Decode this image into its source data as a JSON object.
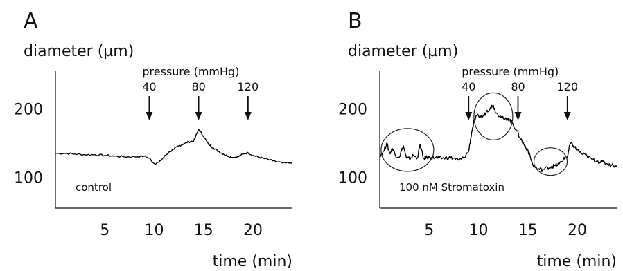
{
  "chart_data": [
    {
      "panel": "A",
      "type": "line",
      "ylabel": "diameter (µm)",
      "xlabel": "time (min)",
      "xlim": [
        0,
        24
      ],
      "ylim": [
        55,
        255
      ],
      "yticks": [
        100,
        200
      ],
      "xticks": [
        5,
        10,
        15,
        20
      ],
      "pressure_title": "pressure (mmHg)",
      "pressure_steps": [
        {
          "label": "40",
          "time": 9.5
        },
        {
          "label": "80",
          "time": 14.5
        },
        {
          "label": "120",
          "time": 19.5
        }
      ],
      "annotation": "control",
      "series": [
        {
          "x": [
            0,
            1,
            2,
            3,
            4,
            5,
            6,
            7,
            8,
            9,
            9.5,
            10,
            10.5,
            11,
            11.5,
            12,
            12.5,
            13,
            13.5,
            14,
            14.5,
            15,
            15.5,
            16,
            16.5,
            17,
            17.5,
            18,
            18.5,
            19,
            19.5,
            20,
            20.5,
            21,
            22,
            23,
            24
          ],
          "y": [
            135,
            135,
            134,
            133,
            133,
            132,
            131,
            130,
            130,
            131,
            128,
            120,
            122,
            130,
            137,
            141,
            146,
            149,
            152,
            153,
            170,
            160,
            148,
            143,
            138,
            134,
            131,
            129,
            130,
            134,
            136,
            132,
            130,
            128,
            124,
            121,
            120
          ]
        }
      ]
    },
    {
      "panel": "B",
      "type": "line",
      "ylabel": "diameter (µm)",
      "xlabel": "time (min)",
      "xlim": [
        0,
        24
      ],
      "ylim": [
        55,
        255
      ],
      "yticks": [
        100,
        200
      ],
      "xticks": [
        5,
        10,
        15,
        20
      ],
      "pressure_title": "pressure (mmHg)",
      "pressure_steps": [
        {
          "label": "40",
          "time": 9
        },
        {
          "label": "80",
          "time": 14
        },
        {
          "label": "120",
          "time": 19
        }
      ],
      "annotation": "100 nM Stromatoxin",
      "series": [
        {
          "x": [
            0,
            0.4,
            0.7,
            1.0,
            1.3,
            1.6,
            2.0,
            2.4,
            2.7,
            3.0,
            3.4,
            3.8,
            4.1,
            4.4,
            4.8,
            5.2,
            5.6,
            6.0,
            6.5,
            7.0,
            7.5,
            8.0,
            8.5,
            9.0,
            9.3,
            9.6,
            10.0,
            10.4,
            10.8,
            11.2,
            11.5,
            11.8,
            12.2,
            12.6,
            13.0,
            13.4,
            13.8,
            14.2,
            14.6,
            15.0,
            15.5,
            16.0,
            16.5,
            17.0,
            17.4,
            17.8,
            18.2,
            18.6,
            19.0,
            19.3,
            19.6,
            20.0,
            20.5,
            21.0,
            21.5,
            22.0,
            22.5,
            23.0,
            23.5,
            24.0
          ],
          "y": [
            132,
            138,
            150,
            135,
            142,
            132,
            130,
            146,
            128,
            127,
            132,
            128,
            148,
            128,
            129,
            129,
            129,
            128,
            128,
            129,
            128,
            125,
            128,
            138,
            165,
            185,
            190,
            188,
            196,
            202,
            205,
            194,
            190,
            184,
            186,
            180,
            170,
            158,
            148,
            140,
            118,
            112,
            111,
            114,
            116,
            117,
            120,
            126,
            130,
            150,
            146,
            140,
            134,
            131,
            126,
            124,
            122,
            120,
            118,
            117
          ]
        }
      ],
      "highlight_regions": [
        {
          "x_center": 2.8,
          "y_center": 140
        },
        {
          "x_center": 11.5,
          "y_center": 189
        },
        {
          "x_center": 17.3,
          "y_center": 123
        }
      ]
    }
  ]
}
